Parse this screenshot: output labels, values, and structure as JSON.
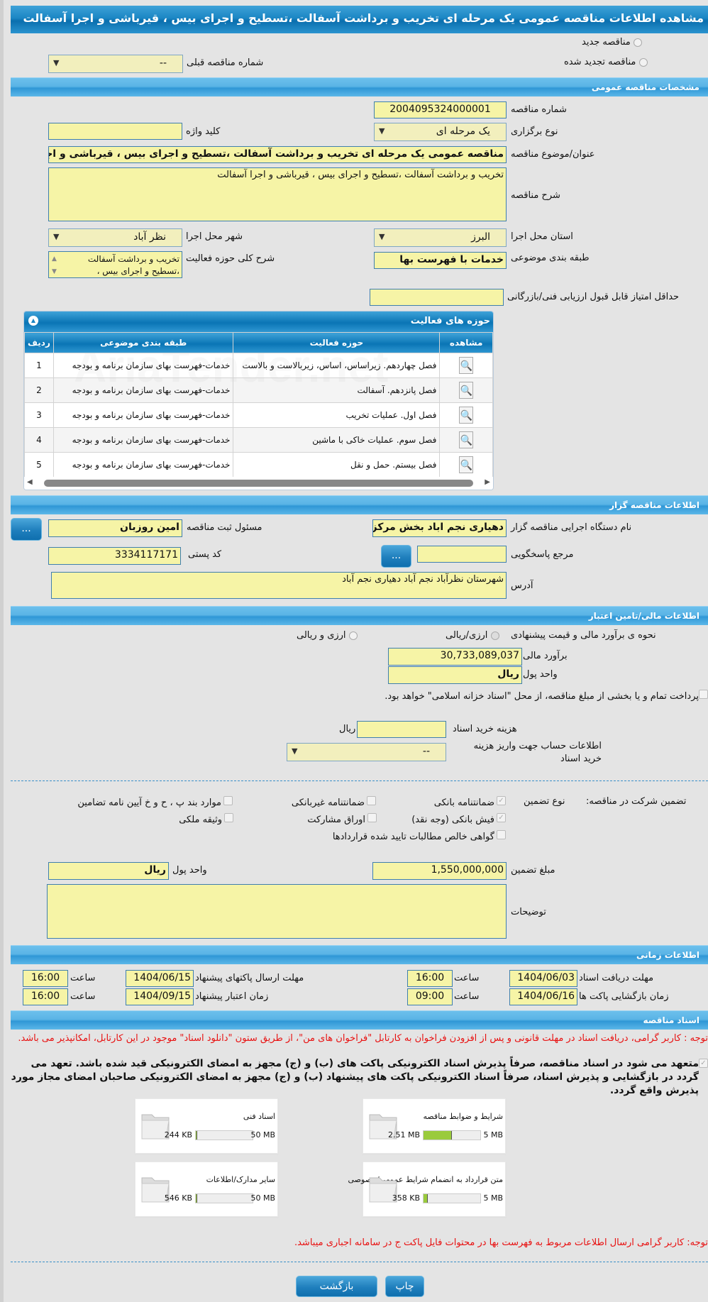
{
  "title": "مشاهده اطلاعات مناقصه عمومی یک مرحله ای تخریب و برداشت آسفالت ،تسطیح و اجرای بیس ، قیرباشی و اجرا آسفالت",
  "top": {
    "radio_new": "مناقصه جدید",
    "radio_renewed": "مناقصه تجدید شده",
    "prev_number_label": "شماره مناقصه قبلی",
    "prev_number_value": "--"
  },
  "general": {
    "header": "مشخصات مناقصه عمومی",
    "number_label": "شماره مناقصه",
    "number": "2004095324000001",
    "type_label": "نوع برگزاری",
    "type": "یک مرحله ای",
    "keyword_label": "کلید واژه",
    "keyword": "",
    "subject_label": "عنوان/موضوع مناقصه",
    "subject": "مناقصه عمومی یک مرحله ای تخریب و برداشت آسفالت ،تسطیح و اجرای بیس ، قیرباشی و اجرا آسفالت",
    "desc_label": "شرح مناقصه",
    "desc": "تخریب و برداشت آسفالت ،تسطیح و اجرای بیس ، قیرباشی و اجرا آسفالت",
    "province_label": "استان محل اجرا",
    "province": "البرز",
    "city_label": "شهر محل اجرا",
    "city": "نظر آباد",
    "category_label": "طبقه بندی موضوعی",
    "category": "خدمات با فهرست بها",
    "scope_label": "شرح کلی حوزه فعالیت",
    "scope": "تخریب و برداشت آسفالت ،تسطیح و اجرای بیس ،",
    "min_score_label": "حداقل امتیاز قابل قبول ارزیابی فنی/بازرگانی",
    "min_score": ""
  },
  "activities": {
    "header": "حوزه های فعالیت",
    "columns": [
      "ردیف",
      "طبقه بندی موضوعی",
      "حوزه فعالیت",
      "مشاهده"
    ],
    "rows": [
      [
        "1",
        "خدمات-فهرست بهای سازمان برنامه و بودجه",
        "فصل چهاردهم. زیراساس، اساس، زیربالاست  و بالاست"
      ],
      [
        "2",
        "خدمات-فهرست بهای سازمان برنامه و بودجه",
        "فصل پانزدهم. آسفالت"
      ],
      [
        "3",
        "خدمات-فهرست بهای سازمان برنامه و بودجه",
        "فصل اول. عملیات تخریب"
      ],
      [
        "4",
        "خدمات-فهرست بهای سازمان برنامه و بودجه",
        "فصل سوم. عملیات خاکی با ماشین"
      ],
      [
        "5",
        "خدمات-فهرست بهای سازمان برنامه و بودجه",
        "فصل بیستم. حمل و نقل"
      ]
    ],
    "watermark": "AriaTender.net"
  },
  "organizer": {
    "header": "اطلاعات مناقصه گزار",
    "org_label": "نام دستگاه اجرایی مناقصه گزار",
    "org": "دهیاری نجم اباد بخش مرکزی",
    "officer_label": "مسئول ثبت مناقصه",
    "officer": "امین روزبان",
    "ref_label": "مرجع پاسخگویی",
    "ref": "",
    "postal_label": "کد پستی",
    "postal": "3334117171",
    "address_label": "آدرس",
    "address": "شهرستان نظرآباد نجم آباد دهیاری نجم آباد",
    "more_button": "..."
  },
  "finance": {
    "header": "اطلاعات مالی/تامین اعتبار",
    "method_label": "نحوه ی برآورد مالی و قیمت پیشنهادی",
    "opt1": "ارزی/ریالی",
    "opt2": "ارزی و ریالی",
    "estimate_label": "برآورد مالی",
    "estimate": "30,733,089,037",
    "currency_label": "واحد پول",
    "currency": "ریال",
    "treasury_text": "پرداخت تمام و یا بخشی از مبلغ مناقصه، از محل \"اسناد خزانه اسلامی\" خواهد بود.",
    "doc_fee_label": "هزینه خرید اسناد",
    "doc_fee": "",
    "doc_fee_unit": "ریال",
    "account_label": "اطلاعات حساب جهت واریز هزینه خرید اسناد",
    "account": "--"
  },
  "guarantee": {
    "label": "تضمین شرکت در مناقصه:",
    "type_label": "نوع تضمین",
    "options": [
      {
        "label": "ضمانتنامه بانکی",
        "checked": true
      },
      {
        "label": "ضمانتنامه غیربانکی",
        "checked": false
      },
      {
        "label": "موارد بند پ ، ح و خ آیین نامه تضامین",
        "checked": false
      },
      {
        "label": "فیش بانکی (وجه نقد)",
        "checked": true
      },
      {
        "label": "اوراق مشارکت",
        "checked": false
      },
      {
        "label": "وثیقه ملکی",
        "checked": false
      },
      {
        "label": "گواهی خالص مطالبات تایید شده قراردادها",
        "checked": false
      }
    ],
    "amount_label": "مبلغ تضمین",
    "amount": "1,550,000,000",
    "currency_label": "واحد پول",
    "currency": "ریال",
    "notes_label": "توضیحات",
    "notes": ""
  },
  "timing": {
    "header": "اطلاعات زمانی",
    "doc_deadline_label": "مهلت دریافت اسناد",
    "doc_deadline": "1404/06/03",
    "doc_deadline_time": "16:00",
    "submit_deadline_label": "مهلت ارسال پاکتهای پیشنهاد",
    "submit_deadline": "1404/06/15",
    "submit_deadline_time": "16:00",
    "opening_label": "زمان بازگشایی پاکت ها",
    "opening": "1404/06/16",
    "opening_time": "09:00",
    "validity_label": "زمان اعتبار پیشنهاد",
    "validity": "1404/09/15",
    "validity_time": "16:00",
    "time_label": "ساعت"
  },
  "documents": {
    "header": "اسناد مناقصه",
    "note1": "توجه : کاربر گرامی، دریافت اسناد در مهلت قانونی و پس از افزودن فراخوان به کارتابل \"فراخوان های من\"، از طریق ستون \"دانلود اسناد\" موجود در این کارتابل، امکانپذیر می باشد.",
    "commit": "متعهد می شود در اسناد مناقصه، صرفاً پذیرش اسناد الکترونیکی پاکت های (ب) و (ج) مجهز به امضای الکترونیکی قید شده باشد. تعهد می گردد در بازگشایی و پذیرش اسناد، صرفاً اسناد الکترونیکی پاکت های پیشنهاد (ب) و (ج) مجهز به امضای الکترونیکی صاحبان امضای مجاز مورد پذیرش واقع گردد.",
    "files": [
      {
        "name": "شرایط و ضوابط مناقصه",
        "size": "2.51 MB",
        "max": "5 MB",
        "fill": 0.5
      },
      {
        "name": "اسناد فنی",
        "size": "244 KB",
        "max": "50 MB",
        "fill": 0.005
      },
      {
        "name": "متن قرارداد به انضمام شرایط عمومی/خصوصی",
        "size": "358 KB",
        "max": "5 MB",
        "fill": 0.07
      },
      {
        "name": "سایر مدارک/اطلاعات",
        "size": "546 KB",
        "max": "50 MB",
        "fill": 0.011
      }
    ],
    "note2": "توجه: کاربر گرامی ارسال اطلاعات مربوط به فهرست بها در محتوات فایل پاکت ج در سامانه اجباری میباشد."
  },
  "buttons": {
    "back": "بازگشت",
    "print": "چاپ"
  }
}
